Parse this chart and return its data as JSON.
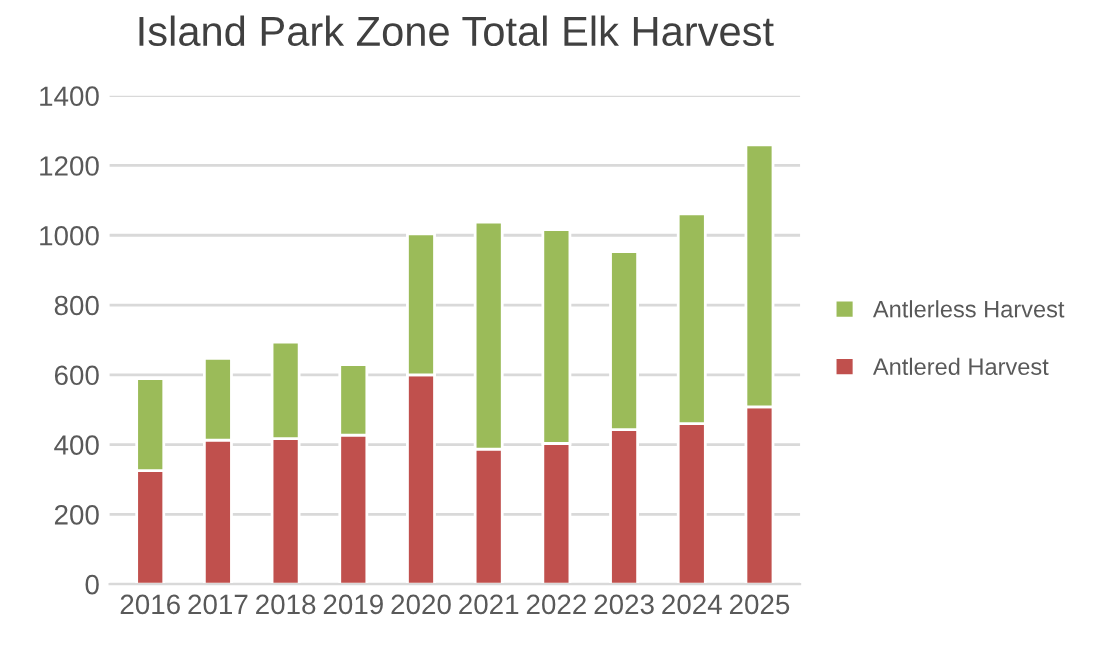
{
  "chart_data": {
    "type": "bar",
    "title": "Island Park Zone Total Elk Harvest",
    "categories": [
      "2016",
      "2017",
      "2018",
      "2019",
      "2020",
      "2021",
      "2022",
      "2023",
      "2024",
      "2025"
    ],
    "stacked": true,
    "series": [
      {
        "name": "Antlered Harvest",
        "color": "#c0504d",
        "values": [
          325,
          413,
          417,
          427,
          600,
          387,
          403,
          443,
          460,
          508
        ]
      },
      {
        "name": "Antlerless Harvest",
        "color": "#9bbb59",
        "values": [
          264,
          234,
          277,
          202,
          404,
          651,
          613,
          510,
          601,
          751
        ]
      }
    ],
    "ylim": [
      0,
      1400
    ],
    "yticks": [
      0,
      200,
      400,
      600,
      800,
      1000,
      1200,
      1400
    ],
    "grid": "y",
    "legend": "right"
  }
}
